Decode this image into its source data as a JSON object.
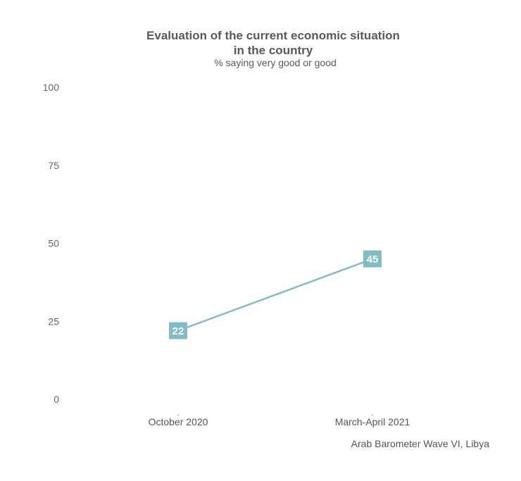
{
  "chart_data": {
    "type": "line",
    "title_line1": "Evaluation of the current economic situation",
    "title_line2": "in the country",
    "subtitle": "% saying very good or good",
    "categories": [
      "October 2020",
      "March-April 2021"
    ],
    "series": [
      {
        "values": [
          22,
          45
        ],
        "color": "#7fbcc6"
      }
    ],
    "yticks": [
      0,
      25,
      50,
      75,
      100
    ],
    "ylim": [
      0,
      100
    ],
    "grid": false,
    "caption": "Arab Barometer Wave VI, Libya"
  }
}
